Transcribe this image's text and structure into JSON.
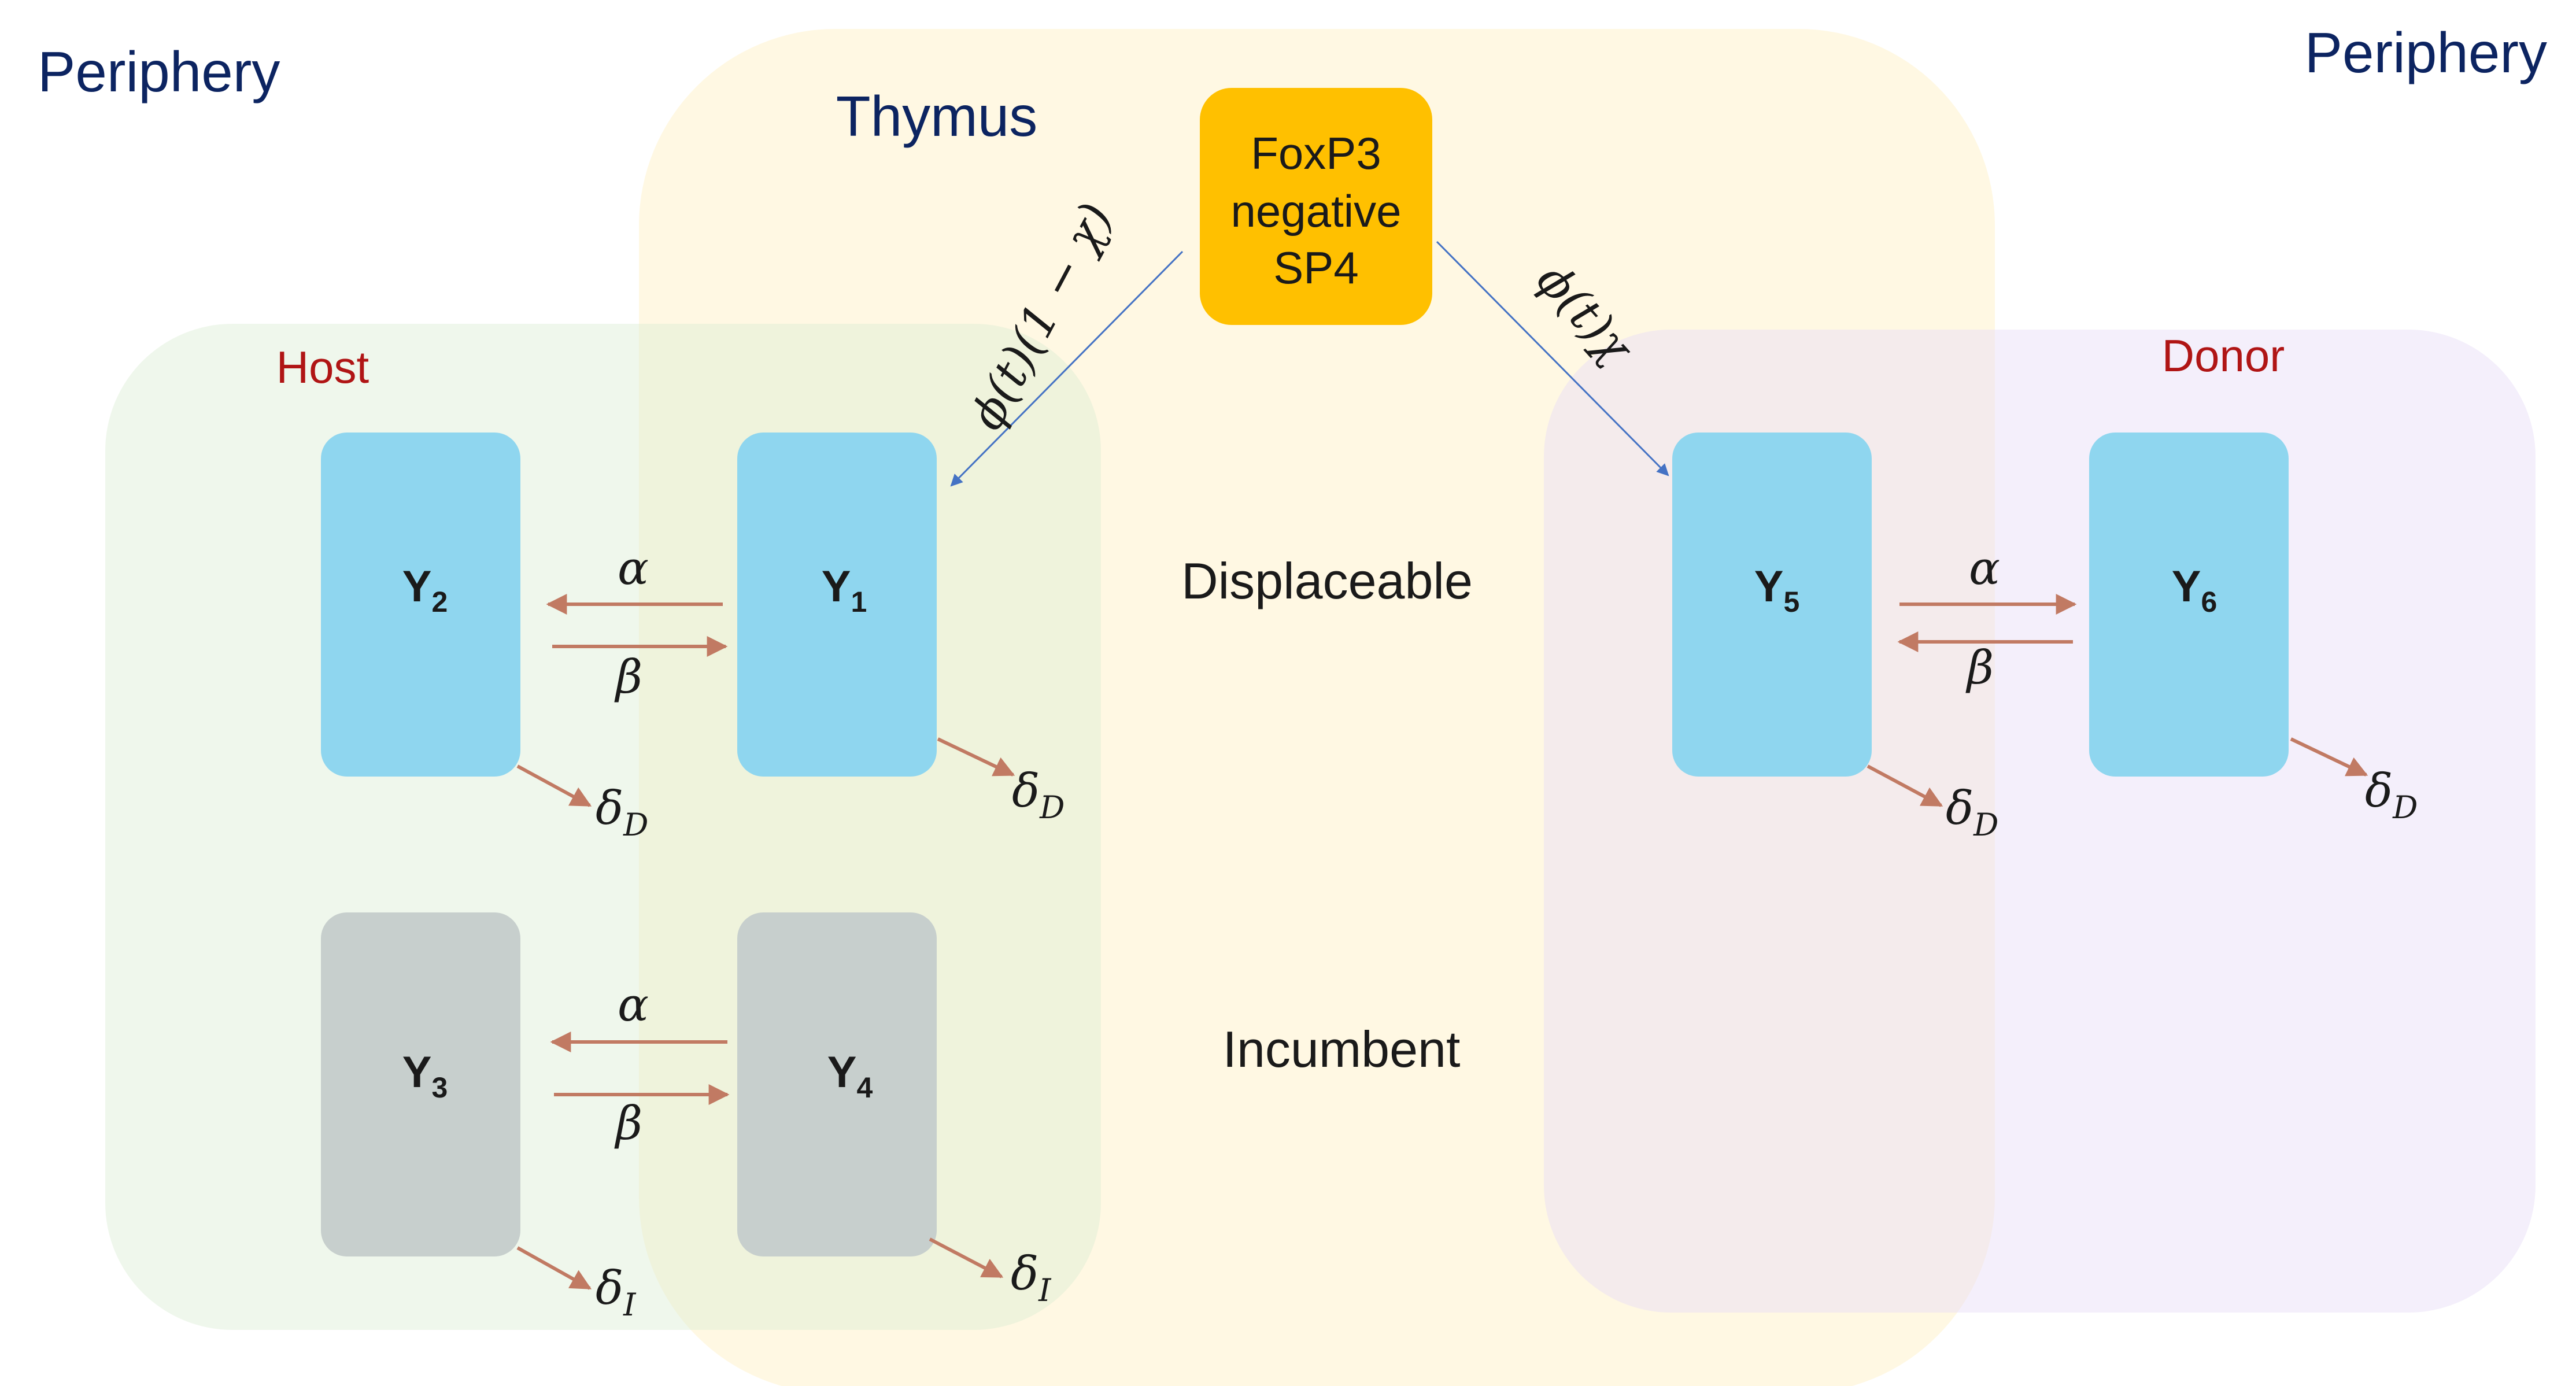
{
  "regions": {
    "periphery_left": "Periphery",
    "periphery_right": "Periphery",
    "thymus": "Thymus",
    "host": "Host",
    "donor": "Donor"
  },
  "source": {
    "line1": "FoxP3",
    "line2": "negative",
    "line3": "SP4"
  },
  "rows": {
    "displaceable": "Displaceable",
    "incumbent": "Incumbent"
  },
  "compartments": {
    "y1": {
      "label": "Y",
      "sub": "1"
    },
    "y2": {
      "label": "Y",
      "sub": "2"
    },
    "y3": {
      "label": "Y",
      "sub": "3"
    },
    "y4": {
      "label": "Y",
      "sub": "4"
    },
    "y5": {
      "label": "Y",
      "sub": "5"
    },
    "y6": {
      "label": "Y",
      "sub": "6"
    }
  },
  "rates": {
    "alpha": "α",
    "beta": "β",
    "delta": "δ",
    "delta_d_sub": "D",
    "delta_i_sub": "I",
    "influx_host": "ϕ(t)(1 − χ)",
    "influx_donor": "ϕ(t)χ"
  },
  "colors": {
    "periphery_text": "#0c2461",
    "host_text": "#b01515",
    "source_box": "#ffc000",
    "displaceable_box": "#8fd6ef",
    "incumbent_box": "#c7cfcd",
    "arrow_rate": "#c17a63",
    "arrow_influx": "#4472c4"
  }
}
